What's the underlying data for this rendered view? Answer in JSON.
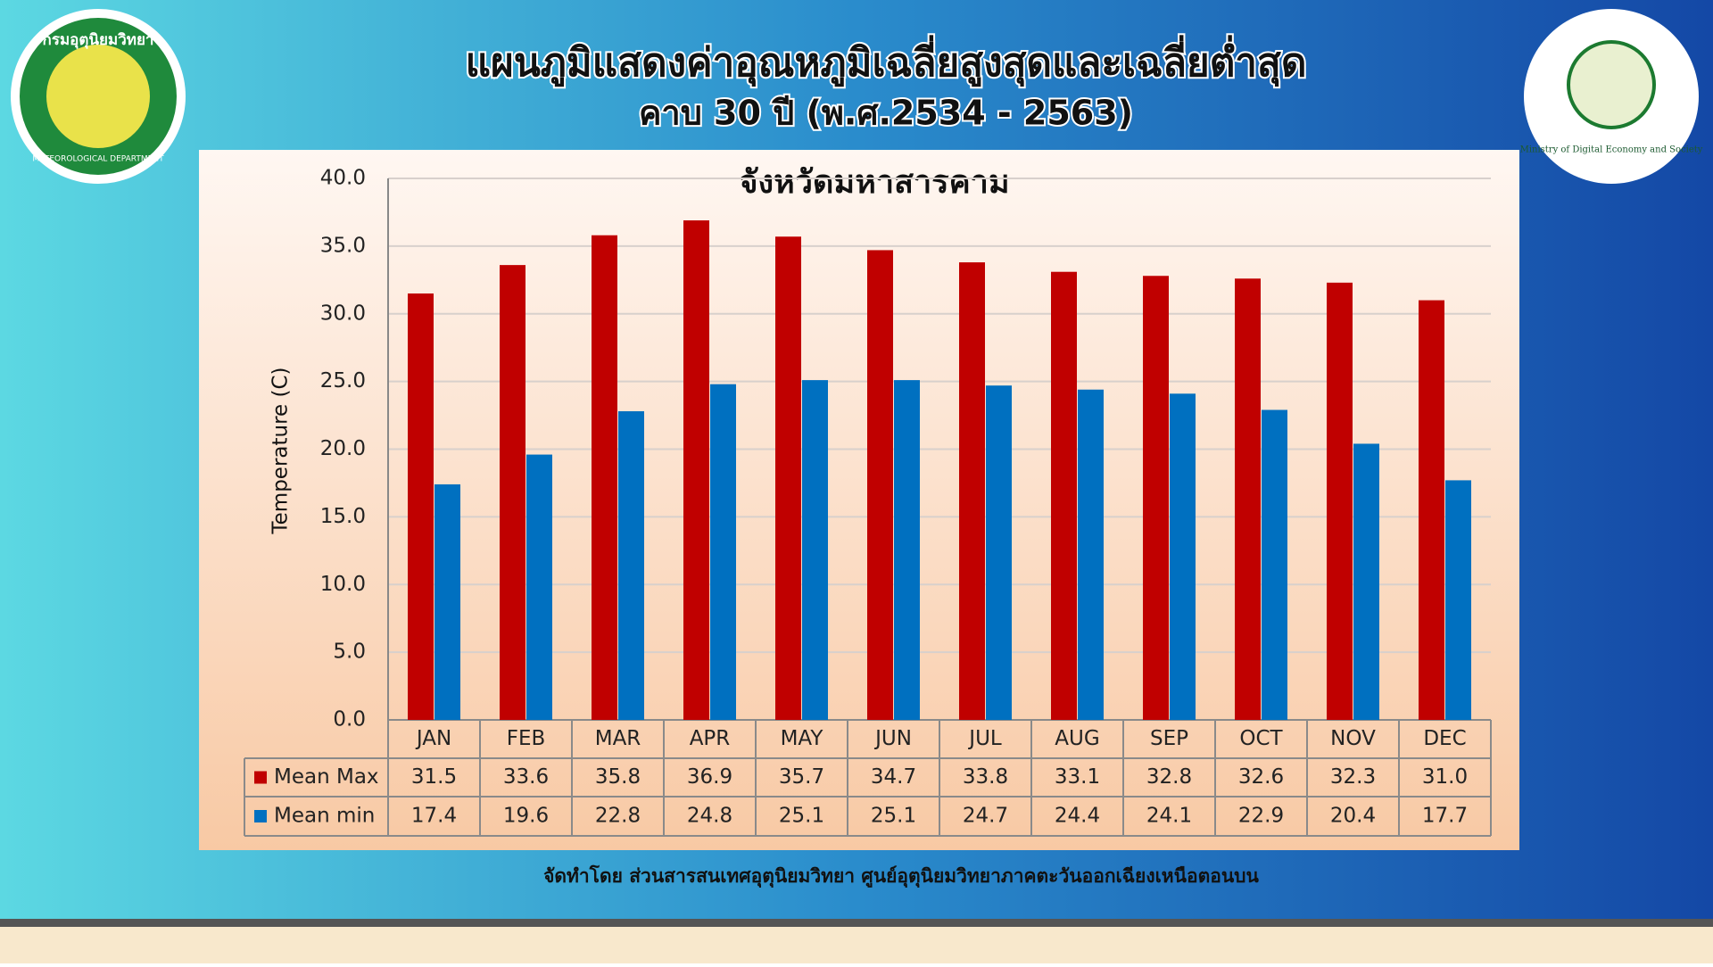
{
  "header": {
    "title": "แผนภูมิแสดงค่าอุณหภูมิเฉลี่ยสูงสุดและเฉลี่ยต่ำสุด",
    "subtitle": "คาบ 30 ปี (พ.ศ.2534 - 2563)"
  },
  "logos": {
    "left_top": "กรมอุตุนิยมวิทยา",
    "left_bottom": "METEOROLOGICAL DEPARTMENT",
    "right": "Ministry of Digital Economy and Society"
  },
  "chart_data": {
    "type": "bar",
    "title": "จังหวัดมหาสารคาม",
    "y_label": "Temperature (C)",
    "categories": [
      "JAN",
      "FEB",
      "MAR",
      "APR",
      "MAY",
      "JUN",
      "JUL",
      "AUG",
      "SEP",
      "OCT",
      "NOV",
      "DEC"
    ],
    "series": [
      {
        "name": "Mean Max",
        "color": "#c00000",
        "values": [
          31.5,
          33.6,
          35.8,
          36.9,
          35.7,
          34.7,
          33.8,
          33.1,
          32.8,
          32.6,
          32.3,
          31.0
        ],
        "value_labels": [
          "31.5",
          "33.6",
          "35.8",
          "36.9",
          "35.7",
          "34.7",
          "33.8",
          "33.1",
          "32.8",
          "32.6",
          "32.3",
          "31.0"
        ]
      },
      {
        "name": "Mean min",
        "color": "#0070c0",
        "values": [
          17.4,
          19.6,
          22.8,
          24.8,
          25.1,
          25.1,
          24.7,
          24.4,
          24.1,
          22.9,
          20.4,
          17.7
        ],
        "value_labels": [
          "17.4",
          "19.6",
          "22.8",
          "24.8",
          "25.1",
          "25.1",
          "24.7",
          "24.4",
          "24.1",
          "22.9",
          "20.4",
          "17.7"
        ]
      }
    ],
    "ylim": [
      0,
      40
    ],
    "yticks": [
      {
        "value": 0,
        "label": "0.0"
      },
      {
        "value": 5,
        "label": "5.0"
      },
      {
        "value": 10,
        "label": "10.0"
      },
      {
        "value": 15,
        "label": "15.0"
      },
      {
        "value": 20,
        "label": "20.0"
      },
      {
        "value": 25,
        "label": "25.0"
      },
      {
        "value": 30,
        "label": "30.0"
      },
      {
        "value": 35,
        "label": "35.0"
      },
      {
        "value": 40,
        "label": "40.0"
      }
    ],
    "grid": true
  },
  "footer": "จัดทำโดย ส่วนสารสนเทศอุตุนิยมวิทยา ศูนย์อุตุนิยมวิทยาภาคตะวันออกเฉียงเหนือตอนบน"
}
